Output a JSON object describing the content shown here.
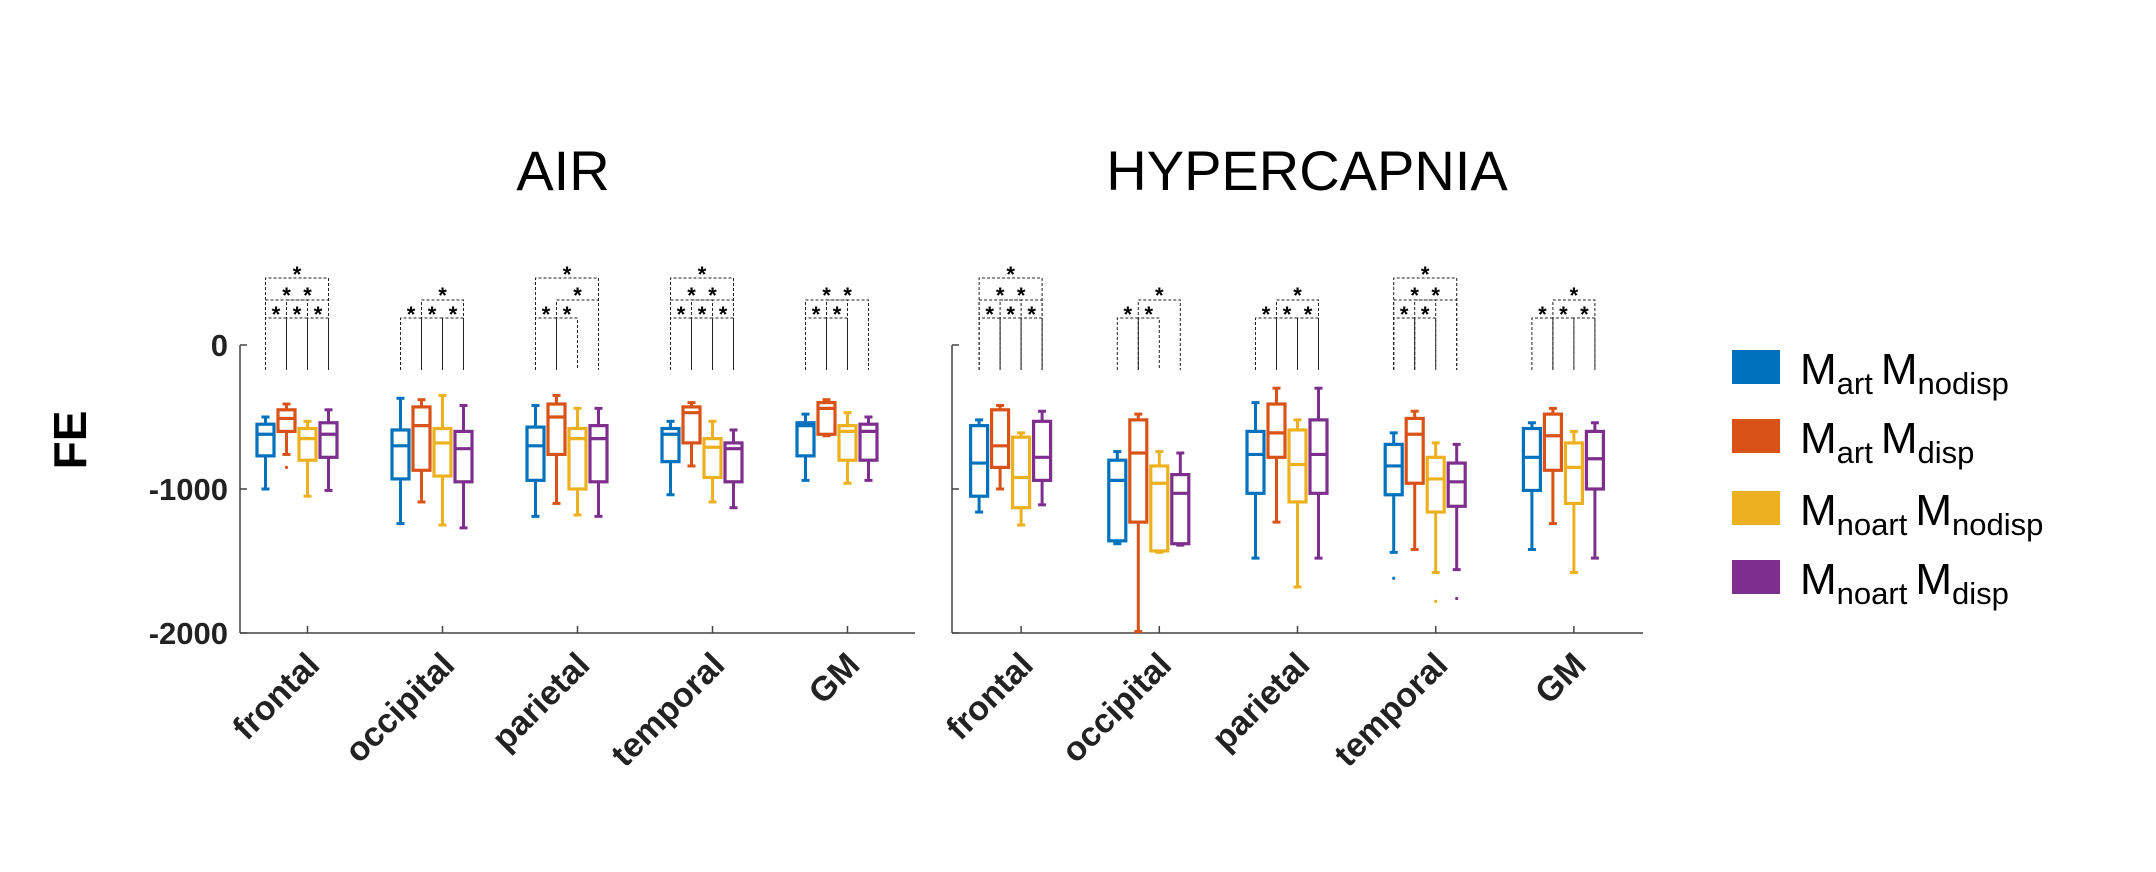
{
  "chart_data": {
    "type": "box",
    "ylabel": "FE",
    "ylim": [
      -2000,
      0
    ],
    "yticks": [
      0,
      -1000,
      -2000
    ],
    "categories": [
      "frontal",
      "occipital",
      "parietal",
      "temporal",
      "GM"
    ],
    "series_colors": [
      "#0072BD",
      "#D95319",
      "#EDB120",
      "#7E2F8E"
    ],
    "legend": [
      {
        "main": "M",
        "sub1": "art",
        "main2": "M",
        "sub2": "nodisp"
      },
      {
        "main": "M",
        "sub1": "art",
        "main2": "M",
        "sub2": "disp"
      },
      {
        "main": "M",
        "sub1": "noart",
        "main2": "M",
        "sub2": "nodisp"
      },
      {
        "main": "M",
        "sub1": "noart",
        "main2": "M",
        "sub2": "disp"
      }
    ],
    "panels": [
      {
        "title": "AIR",
        "groups": [
          {
            "category": "frontal",
            "boxes": [
              {
                "min": -1000,
                "q1": -770,
                "median": -620,
                "q3": -550,
                "max": -500,
                "outliers": []
              },
              {
                "min": -760,
                "q1": -600,
                "median": -510,
                "q3": -450,
                "max": -410,
                "outliers": [
                  -850
                ]
              },
              {
                "min": -1050,
                "q1": -800,
                "median": -650,
                "q3": -580,
                "max": -530,
                "outliers": []
              },
              {
                "min": -1010,
                "q1": -780,
                "median": -620,
                "q3": -540,
                "max": -450,
                "outliers": []
              }
            ],
            "stars": [
              {
                "a": 0,
                "b": 1,
                "level": 0
              },
              {
                "a": 1,
                "b": 2,
                "level": 0
              },
              {
                "a": 2,
                "b": 3,
                "level": 0
              },
              {
                "a": 0,
                "b": 2,
                "level": 1
              },
              {
                "a": 1,
                "b": 3,
                "level": 1
              },
              {
                "a": 0,
                "b": 3,
                "level": 2
              }
            ]
          },
          {
            "category": "occipital",
            "boxes": [
              {
                "min": -1240,
                "q1": -930,
                "median": -700,
                "q3": -590,
                "max": -370,
                "outliers": []
              },
              {
                "min": -1090,
                "q1": -870,
                "median": -560,
                "q3": -430,
                "max": -380,
                "outliers": []
              },
              {
                "min": -1250,
                "q1": -910,
                "median": -680,
                "q3": -580,
                "max": -350,
                "outliers": []
              },
              {
                "min": -1270,
                "q1": -950,
                "median": -720,
                "q3": -600,
                "max": -420,
                "outliers": []
              }
            ],
            "stars": [
              {
                "a": 0,
                "b": 1,
                "level": 0
              },
              {
                "a": 1,
                "b": 2,
                "level": 0
              },
              {
                "a": 2,
                "b": 3,
                "level": 0
              },
              {
                "a": 1,
                "b": 3,
                "level": 1
              }
            ]
          },
          {
            "category": "parietal",
            "boxes": [
              {
                "min": -1190,
                "q1": -940,
                "median": -700,
                "q3": -570,
                "max": -420,
                "outliers": []
              },
              {
                "min": -1100,
                "q1": -760,
                "median": -500,
                "q3": -410,
                "max": -350,
                "outliers": []
              },
              {
                "min": -1180,
                "q1": -1000,
                "median": -650,
                "q3": -580,
                "max": -440,
                "outliers": []
              },
              {
                "min": -1190,
                "q1": -950,
                "median": -650,
                "q3": -560,
                "max": -440,
                "outliers": []
              }
            ],
            "stars": [
              {
                "a": 0,
                "b": 1,
                "level": 0
              },
              {
                "a": 1,
                "b": 2,
                "level": 0
              },
              {
                "a": 1,
                "b": 3,
                "level": 1
              },
              {
                "a": 0,
                "b": 3,
                "level": 2
              }
            ]
          },
          {
            "category": "temporal",
            "boxes": [
              {
                "min": -1040,
                "q1": -810,
                "median": -620,
                "q3": -580,
                "max": -530,
                "outliers": []
              },
              {
                "min": -840,
                "q1": -680,
                "median": -470,
                "q3": -430,
                "max": -400,
                "outliers": []
              },
              {
                "min": -1090,
                "q1": -920,
                "median": -710,
                "q3": -650,
                "max": -530,
                "outliers": []
              },
              {
                "min": -1130,
                "q1": -950,
                "median": -720,
                "q3": -680,
                "max": -590,
                "outliers": []
              }
            ],
            "stars": [
              {
                "a": 0,
                "b": 1,
                "level": 0
              },
              {
                "a": 1,
                "b": 2,
                "level": 0
              },
              {
                "a": 2,
                "b": 3,
                "level": 0
              },
              {
                "a": 0,
                "b": 2,
                "level": 1
              },
              {
                "a": 1,
                "b": 3,
                "level": 1
              },
              {
                "a": 0,
                "b": 3,
                "level": 2
              }
            ]
          },
          {
            "category": "GM",
            "boxes": [
              {
                "min": -940,
                "q1": -770,
                "median": -560,
                "q3": -540,
                "max": -480,
                "outliers": []
              },
              {
                "min": -630,
                "q1": -620,
                "median": -440,
                "q3": -400,
                "max": -380,
                "outliers": []
              },
              {
                "min": -960,
                "q1": -800,
                "median": -600,
                "q3": -560,
                "max": -470,
                "outliers": []
              },
              {
                "min": -940,
                "q1": -800,
                "median": -600,
                "q3": -550,
                "max": -500,
                "outliers": []
              }
            ],
            "stars": [
              {
                "a": 0,
                "b": 1,
                "level": 0
              },
              {
                "a": 1,
                "b": 2,
                "level": 0
              },
              {
                "a": 0,
                "b": 2,
                "level": 1
              },
              {
                "a": 1,
                "b": 3,
                "level": 1
              }
            ]
          }
        ]
      },
      {
        "title": "HYPERCAPNIA",
        "groups": [
          {
            "category": "frontal",
            "boxes": [
              {
                "min": -1160,
                "q1": -1050,
                "median": -820,
                "q3": -560,
                "max": -520,
                "outliers": []
              },
              {
                "min": -1000,
                "q1": -850,
                "median": -700,
                "q3": -450,
                "max": -420,
                "outliers": []
              },
              {
                "min": -1250,
                "q1": -1130,
                "median": -920,
                "q3": -640,
                "max": -610,
                "outliers": []
              },
              {
                "min": -1110,
                "q1": -940,
                "median": -780,
                "q3": -530,
                "max": -460,
                "outliers": []
              }
            ],
            "stars": [
              {
                "a": 0,
                "b": 1,
                "level": 0
              },
              {
                "a": 1,
                "b": 2,
                "level": 0
              },
              {
                "a": 2,
                "b": 3,
                "level": 0
              },
              {
                "a": 0,
                "b": 2,
                "level": 1
              },
              {
                "a": 1,
                "b": 3,
                "level": 1
              },
              {
                "a": 0,
                "b": 3,
                "level": 2
              }
            ]
          },
          {
            "category": "occipital",
            "boxes": [
              {
                "min": -1380,
                "q1": -1360,
                "median": -940,
                "q3": -800,
                "max": -740,
                "outliers": []
              },
              {
                "min": -1990,
                "q1": -1230,
                "median": -750,
                "q3": -520,
                "max": -480,
                "outliers": []
              },
              {
                "min": -1440,
                "q1": -1430,
                "median": -960,
                "q3": -840,
                "max": -740,
                "outliers": []
              },
              {
                "min": -1390,
                "q1": -1380,
                "median": -1030,
                "q3": -900,
                "max": -750,
                "outliers": []
              }
            ],
            "stars": [
              {
                "a": 0,
                "b": 1,
                "level": 0
              },
              {
                "a": 1,
                "b": 2,
                "level": 0
              },
              {
                "a": 1,
                "b": 3,
                "level": 1
              }
            ]
          },
          {
            "category": "parietal",
            "boxes": [
              {
                "min": -1480,
                "q1": -1030,
                "median": -760,
                "q3": -600,
                "max": -400,
                "outliers": []
              },
              {
                "min": -1230,
                "q1": -780,
                "median": -610,
                "q3": -410,
                "max": -300,
                "outliers": []
              },
              {
                "min": -1680,
                "q1": -1090,
                "median": -830,
                "q3": -590,
                "max": -520,
                "outliers": []
              },
              {
                "min": -1480,
                "q1": -1030,
                "median": -760,
                "q3": -520,
                "max": -300,
                "outliers": []
              }
            ],
            "stars": [
              {
                "a": 0,
                "b": 1,
                "level": 0
              },
              {
                "a": 1,
                "b": 2,
                "level": 0
              },
              {
                "a": 2,
                "b": 3,
                "level": 0
              },
              {
                "a": 1,
                "b": 3,
                "level": 1
              }
            ]
          },
          {
            "category": "temporal",
            "boxes": [
              {
                "min": -1440,
                "q1": -1040,
                "median": -840,
                "q3": -690,
                "max": -610,
                "outliers": [
                  -1620
                ]
              },
              {
                "min": -1420,
                "q1": -960,
                "median": -620,
                "q3": -510,
                "max": -460,
                "outliers": []
              },
              {
                "min": -1580,
                "q1": -1160,
                "median": -930,
                "q3": -780,
                "max": -680,
                "outliers": [
                  -1780
                ]
              },
              {
                "min": -1560,
                "q1": -1120,
                "median": -950,
                "q3": -820,
                "max": -690,
                "outliers": [
                  -1760
                ]
              }
            ],
            "stars": [
              {
                "a": 0,
                "b": 1,
                "level": 0
              },
              {
                "a": 1,
                "b": 2,
                "level": 0
              },
              {
                "a": 0,
                "b": 2,
                "level": 1
              },
              {
                "a": 1,
                "b": 3,
                "level": 1
              },
              {
                "a": 0,
                "b": 3,
                "level": 2
              }
            ]
          },
          {
            "category": "GM",
            "boxes": [
              {
                "min": -1420,
                "q1": -1010,
                "median": -780,
                "q3": -580,
                "max": -540,
                "outliers": []
              },
              {
                "min": -1240,
                "q1": -870,
                "median": -630,
                "q3": -480,
                "max": -440,
                "outliers": []
              },
              {
                "min": -1580,
                "q1": -1100,
                "median": -850,
                "q3": -680,
                "max": -600,
                "outliers": []
              },
              {
                "min": -1480,
                "q1": -1000,
                "median": -790,
                "q3": -600,
                "max": -540,
                "outliers": []
              }
            ],
            "stars": [
              {
                "a": 0,
                "b": 1,
                "level": 0
              },
              {
                "a": 1,
                "b": 2,
                "level": 0
              },
              {
                "a": 2,
                "b": 3,
                "level": 0
              },
              {
                "a": 1,
                "b": 3,
                "level": 1
              }
            ]
          }
        ]
      }
    ]
  }
}
